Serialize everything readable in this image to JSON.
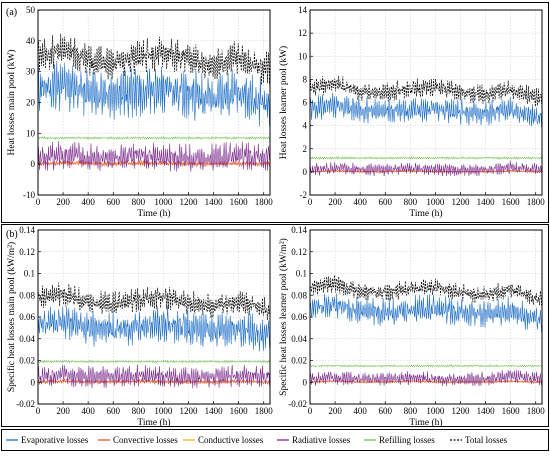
{
  "panel_labels": [
    "(a)",
    "(b)"
  ],
  "legend": [
    {
      "label": "Evaporative losses",
      "color": "#1f6fc7",
      "dash": "solid"
    },
    {
      "label": "Convective losses",
      "color": "#e8532b",
      "dash": "solid"
    },
    {
      "label": "Conductive losses",
      "color": "#f2b81a",
      "dash": "solid"
    },
    {
      "label": "Radiative losses",
      "color": "#7e2f8e",
      "dash": "solid"
    },
    {
      "label": "Refilling losses",
      "color": "#6ec24a",
      "dash": "solid"
    },
    {
      "label": "Total losses",
      "color": "#000000",
      "dash": "dashed"
    }
  ],
  "chart_data": [
    {
      "type": "line",
      "panel": "(a)",
      "xlabel": "Time (h)",
      "ylabel": "Heat losses main pool (kW)",
      "xlim": [
        0,
        1850
      ],
      "ylim": [
        -10,
        50
      ],
      "xticks": [
        0,
        200,
        400,
        600,
        800,
        1000,
        1200,
        1400,
        1600,
        1800
      ],
      "yticks": [
        -10,
        0,
        10,
        20,
        30,
        40,
        50
      ],
      "grid": true,
      "series": [
        {
          "name": "Evaporative losses",
          "x": [
            0,
            200,
            400,
            600,
            800,
            1000,
            1200,
            1400,
            1600,
            1800
          ],
          "values": [
            24,
            26,
            23,
            22,
            24,
            25,
            23,
            21,
            23,
            20
          ],
          "band": 9
        },
        {
          "name": "Convective losses",
          "x": [
            0,
            200,
            400,
            600,
            800,
            1000,
            1200,
            1400,
            1600,
            1800
          ],
          "values": [
            0,
            0.5,
            0.2,
            0,
            0.3,
            0.2,
            0.1,
            0,
            0.2,
            0
          ],
          "band": 1
        },
        {
          "name": "Conductive losses",
          "x": [
            0,
            200,
            400,
            600,
            800,
            1000,
            1200,
            1400,
            1600,
            1800
          ],
          "values": [
            0.3,
            0.3,
            0.3,
            0.3,
            0.3,
            0.3,
            0.3,
            0.3,
            0.3,
            0.3
          ],
          "band": 0
        },
        {
          "name": "Radiative losses",
          "x": [
            0,
            200,
            400,
            600,
            800,
            1000,
            1200,
            1400,
            1600,
            1800
          ],
          "values": [
            2,
            3,
            2,
            2,
            3,
            2,
            2,
            2,
            3,
            2
          ],
          "band": 5
        },
        {
          "name": "Refilling losses",
          "x": [
            0,
            200,
            400,
            600,
            800,
            1000,
            1200,
            1400,
            1600,
            1800
          ],
          "values": [
            8.5,
            8.5,
            8.5,
            8.5,
            8.5,
            8.5,
            8.5,
            8.5,
            8.5,
            8.5
          ],
          "band": 0.4
        },
        {
          "name": "Total losses",
          "x": [
            0,
            200,
            400,
            600,
            800,
            1000,
            1200,
            1400,
            1600,
            1800
          ],
          "values": [
            35,
            37,
            34,
            33,
            35,
            36,
            34,
            32,
            35,
            31
          ],
          "band": 6
        }
      ]
    },
    {
      "type": "line",
      "panel": "(a)",
      "xlabel": "Time (h)",
      "ylabel": "Heat losses learner pool (kW)",
      "xlim": [
        0,
        1850
      ],
      "ylim": [
        -2,
        14
      ],
      "xticks": [
        0,
        200,
        400,
        600,
        800,
        1000,
        1200,
        1400,
        1600,
        1800
      ],
      "yticks": [
        -2,
        0,
        2,
        4,
        6,
        8,
        10,
        12,
        14
      ],
      "grid": true,
      "series": [
        {
          "name": "Evaporative losses",
          "x": [
            0,
            200,
            400,
            600,
            800,
            1000,
            1200,
            1400,
            1600,
            1800
          ],
          "values": [
            5.5,
            5.8,
            5.3,
            5.2,
            5.4,
            5.5,
            5.2,
            5.0,
            5.4,
            4.8
          ],
          "band": 1.2
        },
        {
          "name": "Convective losses",
          "x": [
            0,
            200,
            400,
            600,
            800,
            1000,
            1200,
            1400,
            1600,
            1800
          ],
          "values": [
            0,
            0.1,
            0,
            0,
            0.1,
            0,
            0,
            0,
            0.1,
            0
          ],
          "band": 0.1
        },
        {
          "name": "Conductive losses",
          "x": [
            0,
            200,
            400,
            600,
            800,
            1000,
            1200,
            1400,
            1600,
            1800
          ],
          "values": [
            0.05,
            0.05,
            0.05,
            0.05,
            0.05,
            0.05,
            0.05,
            0.05,
            0.05,
            0.05
          ],
          "band": 0
        },
        {
          "name": "Radiative losses",
          "x": [
            0,
            200,
            400,
            600,
            800,
            1000,
            1200,
            1400,
            1600,
            1800
          ],
          "values": [
            0.2,
            0.3,
            0.2,
            0.2,
            0.3,
            0.2,
            0.2,
            0.2,
            0.4,
            0.2
          ],
          "band": 0.6
        },
        {
          "name": "Refilling losses",
          "x": [
            0,
            200,
            400,
            600,
            800,
            1000,
            1200,
            1400,
            1600,
            1800
          ],
          "values": [
            1.2,
            1.2,
            1.2,
            1.2,
            1.2,
            1.2,
            1.2,
            1.2,
            1.2,
            1.2
          ],
          "band": 0.1
        },
        {
          "name": "Total losses",
          "x": [
            0,
            200,
            400,
            600,
            800,
            1000,
            1200,
            1400,
            1600,
            1800
          ],
          "values": [
            7.3,
            7.6,
            7.0,
            6.9,
            7.2,
            7.3,
            6.9,
            6.7,
            7.2,
            6.4
          ],
          "band": 0.9
        }
      ]
    },
    {
      "type": "line",
      "panel": "(b)",
      "xlabel": "Time (h)",
      "ylabel": "Specific heat losses main pool (kW/m²)",
      "xlim": [
        0,
        1850
      ],
      "ylim": [
        -0.02,
        0.14
      ],
      "xticks": [
        0,
        200,
        400,
        600,
        800,
        1000,
        1200,
        1400,
        1600,
        1800
      ],
      "yticks": [
        "-0.02",
        "0",
        "0.02",
        "0.04",
        "0.06",
        "0.08",
        "0.1",
        "0.12",
        "0.14"
      ],
      "grid": true,
      "series": [
        {
          "name": "Evaporative losses",
          "x": [
            0,
            200,
            400,
            600,
            800,
            1000,
            1200,
            1400,
            1600,
            1800
          ],
          "values": [
            0.053,
            0.056,
            0.05,
            0.048,
            0.052,
            0.054,
            0.05,
            0.046,
            0.05,
            0.044
          ],
          "band": 0.018
        },
        {
          "name": "Convective losses",
          "x": [
            0,
            200,
            400,
            600,
            800,
            1000,
            1200,
            1400,
            1600,
            1800
          ],
          "values": [
            0,
            0.001,
            0,
            0,
            0.001,
            0,
            0,
            0,
            0.001,
            0
          ],
          "band": 0.002
        },
        {
          "name": "Conductive losses",
          "x": [
            0,
            200,
            400,
            600,
            800,
            1000,
            1200,
            1400,
            1600,
            1800
          ],
          "values": [
            0.001,
            0.001,
            0.001,
            0.001,
            0.001,
            0.001,
            0.001,
            0.001,
            0.001,
            0.001
          ],
          "band": 0
        },
        {
          "name": "Radiative losses",
          "x": [
            0,
            200,
            400,
            600,
            800,
            1000,
            1200,
            1400,
            1600,
            1800
          ],
          "values": [
            0.005,
            0.006,
            0.005,
            0.005,
            0.006,
            0.005,
            0.005,
            0.005,
            0.006,
            0.005
          ],
          "band": 0.011
        },
        {
          "name": "Refilling losses",
          "x": [
            0,
            200,
            400,
            600,
            800,
            1000,
            1200,
            1400,
            1600,
            1800
          ],
          "values": [
            0.019,
            0.019,
            0.019,
            0.019,
            0.019,
            0.019,
            0.019,
            0.019,
            0.019,
            0.019
          ],
          "band": 0.001
        },
        {
          "name": "Total losses",
          "x": [
            0,
            200,
            400,
            600,
            800,
            1000,
            1200,
            1400,
            1600,
            1800
          ],
          "values": [
            0.077,
            0.081,
            0.074,
            0.072,
            0.076,
            0.078,
            0.073,
            0.07,
            0.075,
            0.067
          ],
          "band": 0.012
        }
      ]
    },
    {
      "type": "line",
      "panel": "(b)",
      "xlabel": "Time (h)",
      "ylabel": "Specific heat losses learner pool (kW/m²)",
      "xlim": [
        0,
        1850
      ],
      "ylim": [
        -0.02,
        0.14
      ],
      "xticks": [
        0,
        200,
        400,
        600,
        800,
        1000,
        1200,
        1400,
        1600,
        1800
      ],
      "yticks": [
        "-0.02",
        "0",
        "0.02",
        "0.04",
        "0.06",
        "0.08",
        "0.1",
        "0.12",
        "0.14"
      ],
      "grid": true,
      "series": [
        {
          "name": "Evaporative losses",
          "x": [
            0,
            200,
            400,
            600,
            800,
            1000,
            1200,
            1400,
            1600,
            1800
          ],
          "values": [
            0.068,
            0.071,
            0.065,
            0.064,
            0.067,
            0.068,
            0.064,
            0.062,
            0.066,
            0.058
          ],
          "band": 0.014
        },
        {
          "name": "Convective losses",
          "x": [
            0,
            200,
            400,
            600,
            800,
            1000,
            1200,
            1400,
            1600,
            1800
          ],
          "values": [
            0,
            0.001,
            0,
            0,
            0.001,
            0,
            0,
            0,
            0.001,
            0
          ],
          "band": 0.001
        },
        {
          "name": "Conductive losses",
          "x": [
            0,
            200,
            400,
            600,
            800,
            1000,
            1200,
            1400,
            1600,
            1800
          ],
          "values": [
            0.001,
            0.001,
            0.001,
            0.001,
            0.001,
            0.001,
            0.001,
            0.001,
            0.001,
            0.001
          ],
          "band": 0
        },
        {
          "name": "Radiative losses",
          "x": [
            0,
            200,
            400,
            600,
            800,
            1000,
            1200,
            1400,
            1600,
            1800
          ],
          "values": [
            0.003,
            0.004,
            0.003,
            0.003,
            0.004,
            0.003,
            0.003,
            0.003,
            0.006,
            0.003
          ],
          "band": 0.007
        },
        {
          "name": "Refilling losses",
          "x": [
            0,
            200,
            400,
            600,
            800,
            1000,
            1200,
            1400,
            1600,
            1800
          ],
          "values": [
            0.015,
            0.015,
            0.015,
            0.015,
            0.015,
            0.015,
            0.015,
            0.015,
            0.015,
            0.015
          ],
          "band": 0.001
        },
        {
          "name": "Total losses",
          "x": [
            0,
            200,
            400,
            600,
            800,
            1000,
            1200,
            1400,
            1600,
            1800
          ],
          "values": [
            0.087,
            0.091,
            0.084,
            0.083,
            0.086,
            0.087,
            0.083,
            0.08,
            0.086,
            0.077
          ],
          "band": 0.009
        }
      ]
    }
  ]
}
